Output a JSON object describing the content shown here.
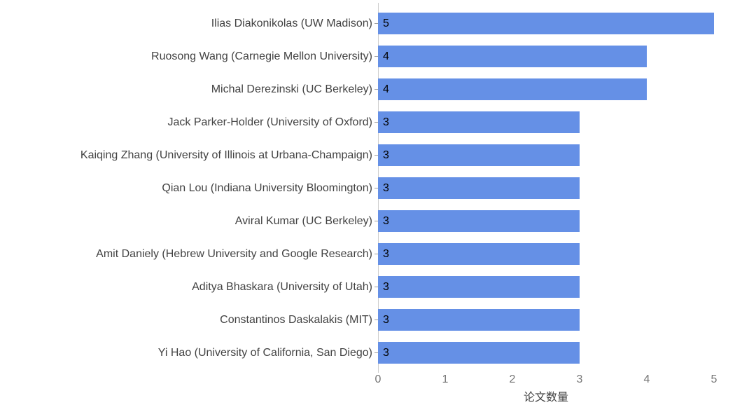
{
  "chart_data": {
    "type": "bar",
    "orientation": "horizontal",
    "title": "",
    "xlabel": "论文数量",
    "ylabel": "",
    "xlim": [
      0,
      5
    ],
    "x_ticks": [
      "0",
      "1",
      "2",
      "3",
      "4",
      "5"
    ],
    "grid": false,
    "legend": false,
    "bar_color": "#6590e6",
    "categories": [
      "Ilias Diakonikolas (UW Madison)",
      "Ruosong Wang (Carnegie Mellon University)",
      "Michal Derezinski (UC Berkeley)",
      "Jack Parker-Holder (University of Oxford)",
      "Kaiqing Zhang (University of Illinois at Urbana-Champaign)",
      "Qian Lou (Indiana University Bloomington)",
      "Aviral Kumar (UC Berkeley)",
      "Amit Daniely (Hebrew University and Google Research)",
      "Aditya Bhaskara (University of Utah)",
      "Constantinos Daskalakis (MIT)",
      "Yi Hao (University of California, San Diego)"
    ],
    "values": [
      5,
      4,
      4,
      3,
      3,
      3,
      3,
      3,
      3,
      3,
      3
    ],
    "value_labels": [
      "5",
      "4",
      "4",
      "3",
      "3",
      "3",
      "3",
      "3",
      "3",
      "3",
      "3"
    ]
  }
}
